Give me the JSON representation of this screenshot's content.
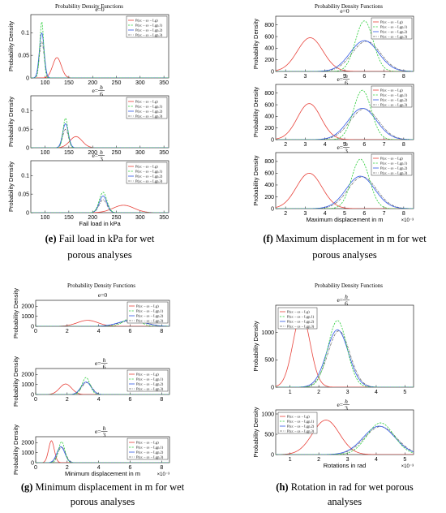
{
  "colors": {
    "red": "#e8423a",
    "green": "#2fcf3c",
    "blue": "#2f57e6",
    "gray": "#6b6b6b"
  },
  "legend_labels": [
    "P(εc − εs − Lg)",
    "P(εc − εs − Lgp,1)",
    "P(εc − εs − Lgp,2)",
    "P(εc − εs − Lgp,3)"
  ],
  "panels": [
    {
      "id": "e",
      "plot_title": "Probability Density Functions",
      "caption_letter": "(e)",
      "caption_text": "Fail load in kPa for wet porous analyses",
      "chart_data": {
        "type": "line",
        "xlabel": "Fail load in kPa",
        "ylabel": "Probability Density",
        "xlim": [
          70,
          360
        ],
        "xticks": [
          "100",
          "150",
          "200",
          "250",
          "300",
          "350"
        ],
        "subplots": [
          {
            "subtitle": "e=0",
            "ylim": [
              0,
              0.14
            ],
            "yticks": [
              "0",
              "0.05",
              "0.1"
            ],
            "series": [
              {
                "name": "red",
                "mu": 125,
                "sigma": 9,
                "peak": 0.045
              },
              {
                "name": "green",
                "mu": 93,
                "sigma": 4,
                "peak": 0.125
              },
              {
                "name": "blue",
                "mu": 93,
                "sigma": 5,
                "peak": 0.1
              },
              {
                "name": "gray",
                "mu": 93,
                "sigma": 5,
                "peak": 0.08
              }
            ]
          },
          {
            "subtitle": "e=h/6",
            "ylim": [
              0,
              0.14
            ],
            "yticks": [
              "0",
              "0.05",
              "0.1"
            ],
            "series": [
              {
                "name": "red",
                "mu": 165,
                "sigma": 13,
                "peak": 0.03
              },
              {
                "name": "green",
                "mu": 143,
                "sigma": 5,
                "peak": 0.08
              },
              {
                "name": "blue",
                "mu": 143,
                "sigma": 6,
                "peak": 0.065
              },
              {
                "name": "gray",
                "mu": 143,
                "sigma": 6,
                "peak": 0.05
              }
            ]
          },
          {
            "subtitle": "e=h/3",
            "ylim": [
              0,
              0.14
            ],
            "yticks": [
              "0",
              "0.05",
              "0.1"
            ],
            "series": [
              {
                "name": "red",
                "mu": 265,
                "sigma": 22,
                "peak": 0.02
              },
              {
                "name": "green",
                "mu": 222,
                "sigma": 8,
                "peak": 0.055
              },
              {
                "name": "blue",
                "mu": 222,
                "sigma": 8,
                "peak": 0.045
              },
              {
                "name": "gray",
                "mu": 222,
                "sigma": 8,
                "peak": 0.035
              }
            ]
          }
        ]
      }
    },
    {
      "id": "f",
      "plot_title": "Probability Density Functions",
      "caption_letter": "(f)",
      "caption_text": "Maximum displacement in m for wet porous analyses",
      "chart_data": {
        "type": "line",
        "xlabel": "Maximum displacement in m",
        "x_multiplier": "×10⁻³",
        "ylabel": "Probability Density",
        "xlim": [
          1.5,
          8.5
        ],
        "xticks": [
          "2",
          "3",
          "4",
          "5",
          "6",
          "7",
          "8"
        ],
        "subplots": [
          {
            "subtitle": "e=0",
            "ylim": [
              0,
              950
            ],
            "yticks": [
              "0",
              "200",
              "400",
              "600",
              "800"
            ],
            "series": [
              {
                "name": "red",
                "mu": 3.25,
                "sigma": 0.65,
                "peak": 580
              },
              {
                "name": "green",
                "mu": 6.0,
                "sigma": 0.45,
                "peak": 870
              },
              {
                "name": "blue",
                "mu": 6.0,
                "sigma": 0.72,
                "peak": 530
              },
              {
                "name": "gray",
                "mu": 6.1,
                "sigma": 0.72,
                "peak": 520
              }
            ]
          },
          {
            "subtitle": "e=h/6",
            "ylim": [
              0,
              950
            ],
            "yticks": [
              "0",
              "200",
              "400",
              "600",
              "800"
            ],
            "series": [
              {
                "name": "red",
                "mu": 3.2,
                "sigma": 0.6,
                "peak": 620
              },
              {
                "name": "green",
                "mu": 5.9,
                "sigma": 0.45,
                "peak": 850
              },
              {
                "name": "blue",
                "mu": 5.9,
                "sigma": 0.72,
                "peak": 540
              },
              {
                "name": "gray",
                "mu": 6.0,
                "sigma": 0.72,
                "peak": 530
              }
            ]
          },
          {
            "subtitle": "e=h/3",
            "ylim": [
              0,
              950
            ],
            "yticks": [
              "0",
              "200",
              "400",
              "600",
              "800"
            ],
            "series": [
              {
                "name": "red",
                "mu": 3.2,
                "sigma": 0.65,
                "peak": 600
              },
              {
                "name": "green",
                "mu": 5.8,
                "sigma": 0.45,
                "peak": 840
              },
              {
                "name": "blue",
                "mu": 5.8,
                "sigma": 0.72,
                "peak": 550
              },
              {
                "name": "gray",
                "mu": 5.9,
                "sigma": 0.72,
                "peak": 540
              }
            ]
          }
        ]
      }
    },
    {
      "id": "g",
      "plot_title": "Probability Density Functions",
      "caption_letter": "(g)",
      "caption_text": "Minimum displacement in m for wet porous analyses",
      "chart_data": {
        "type": "line",
        "xlabel": "Minimum displacement in m",
        "x_multiplier": "×10⁻³",
        "ylabel": "Probability Density",
        "xlim": [
          0,
          8.5
        ],
        "xticks": [
          "0",
          "2",
          "4",
          "6",
          "8"
        ],
        "subplots": [
          {
            "subtitle": "e=0",
            "ylim": [
              0,
              2600
            ],
            "yticks": [
              "0",
              "1000",
              "2000"
            ],
            "series": [
              {
                "name": "red",
                "mu": 3.3,
                "sigma": 0.65,
                "peak": 600
              },
              {
                "name": "green",
                "mu": 6.1,
                "sigma": 0.5,
                "peak": 850
              },
              {
                "name": "blue",
                "mu": 6.1,
                "sigma": 0.8,
                "peak": 620
              },
              {
                "name": "gray",
                "mu": 6.2,
                "sigma": 0.8,
                "peak": 600
              }
            ]
          },
          {
            "subtitle": "e=h/6",
            "ylim": [
              0,
              2600
            ],
            "yticks": [
              "0",
              "1000",
              "2000"
            ],
            "series": [
              {
                "name": "red",
                "mu": 1.9,
                "sigma": 0.38,
                "peak": 1050
              },
              {
                "name": "green",
                "mu": 3.2,
                "sigma": 0.25,
                "peak": 1700
              },
              {
                "name": "blue",
                "mu": 3.2,
                "sigma": 0.32,
                "peak": 1250
              },
              {
                "name": "gray",
                "mu": 3.25,
                "sigma": 0.32,
                "peak": 1200
              }
            ]
          },
          {
            "subtitle": "e=h/3",
            "ylim": [
              0,
              2600
            ],
            "yticks": [
              "0",
              "1000",
              "2000"
            ],
            "series": [
              {
                "name": "red",
                "mu": 1.0,
                "sigma": 0.18,
                "peak": 2200
              },
              {
                "name": "green",
                "mu": 1.65,
                "sigma": 0.2,
                "peak": 2100
              },
              {
                "name": "blue",
                "mu": 1.6,
                "sigma": 0.25,
                "peak": 1600
              },
              {
                "name": "gray",
                "mu": 1.65,
                "sigma": 0.25,
                "peak": 1550
              }
            ]
          }
        ]
      }
    },
    {
      "id": "h",
      "plot_title": "Probability Density Functions",
      "caption_letter": "(h)",
      "caption_text": "Rotation in rad for wet porous analyses",
      "chart_data": {
        "type": "line",
        "xlabel": "Rotations in rad",
        "x_multiplier": "×10⁻³",
        "ylabel": "Probability Density",
        "xlim": [
          0.5,
          5.3
        ],
        "xticks": [
          "1",
          "2",
          "3",
          "4",
          "5"
        ],
        "subplots": [
          {
            "subtitle": "e=h/6",
            "ylim": [
              0,
              1500
            ],
            "yticks": [
              "0",
              "500",
              "1000"
            ],
            "series": [
              {
                "name": "red",
                "mu": 1.4,
                "sigma": 0.3,
                "peak": 1330
              },
              {
                "name": "green",
                "mu": 2.65,
                "sigma": 0.33,
                "peak": 1220
              },
              {
                "name": "blue",
                "mu": 2.65,
                "sigma": 0.38,
                "peak": 1050
              },
              {
                "name": "gray",
                "mu": 2.7,
                "sigma": 0.38,
                "peak": 1030
              }
            ]
          },
          {
            "subtitle": "e=h/3",
            "ylim": [
              0,
              1100
            ],
            "yticks": [
              "0",
              "500",
              "1000"
            ],
            "series": [
              {
                "name": "red",
                "mu": 2.25,
                "sigma": 0.47,
                "peak": 850
              },
              {
                "name": "green",
                "mu": 4.15,
                "sigma": 0.47,
                "peak": 780
              },
              {
                "name": "blue",
                "mu": 4.1,
                "sigma": 0.55,
                "peak": 700
              },
              {
                "name": "gray",
                "mu": 4.15,
                "sigma": 0.55,
                "peak": 690
              }
            ]
          }
        ]
      }
    }
  ]
}
